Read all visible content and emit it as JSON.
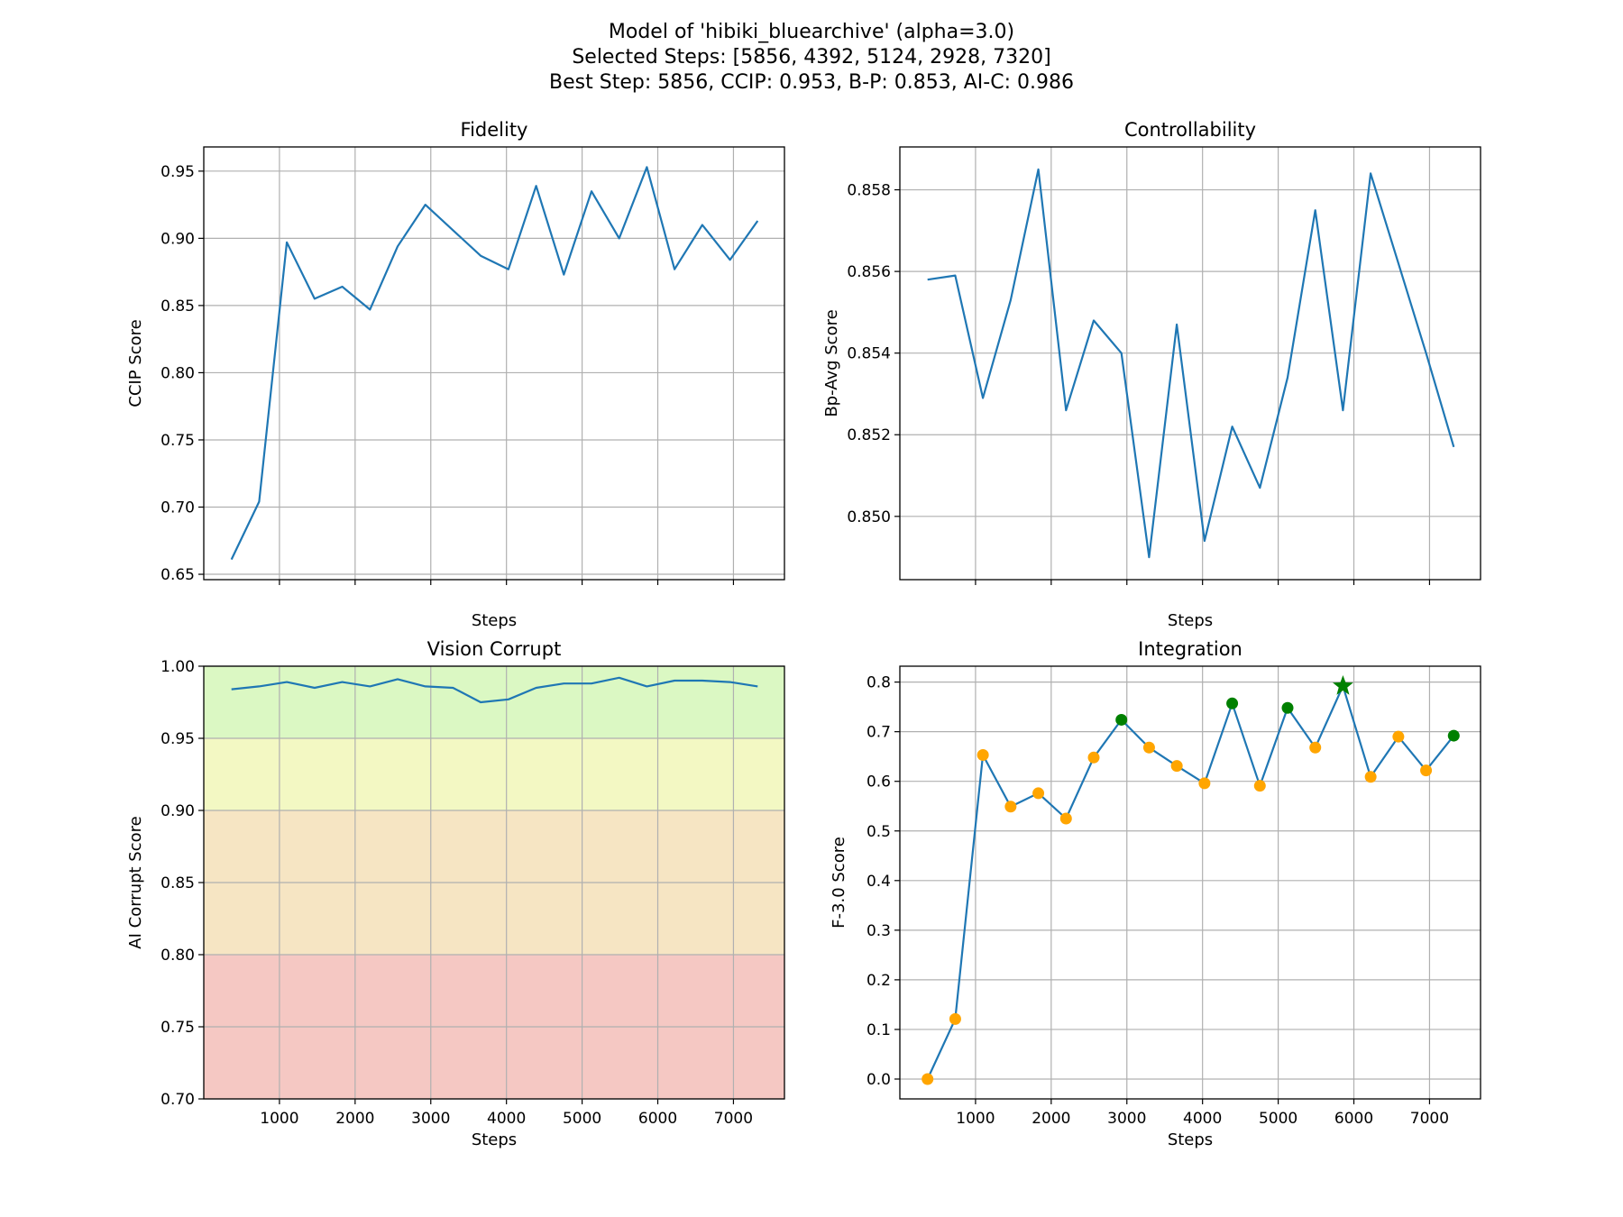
{
  "figure": {
    "title_lines": [
      "Model of 'hibiki_bluearchive' (alpha=3.0)",
      "Selected Steps: [5856, 4392, 5124, 2928, 7320]",
      "Best Step: 5856, CCIP: 0.953, B-P: 0.853, AI-C: 0.986"
    ]
  },
  "colors": {
    "line": "#1f77b4",
    "grid": "#b0b0b0",
    "selected_point": "#008000",
    "other_point": "#ffa500",
    "best_marker": "#008000",
    "band_green": "#dbf8c3",
    "band_yellow": "#f3f8c3",
    "band_orange": "#f6e5c3",
    "band_red": "#f5c8c3"
  },
  "chart_data": [
    {
      "id": "fidelity",
      "type": "line",
      "title": "Fidelity",
      "xlabel": "Steps",
      "ylabel": "CCIP Score",
      "x": [
        366,
        732,
        1098,
        1464,
        1830,
        2196,
        2562,
        2928,
        3294,
        3660,
        4026,
        4392,
        4758,
        5124,
        5490,
        5856,
        6222,
        6588,
        6954,
        7320
      ],
      "values": [
        0.661,
        0.704,
        0.897,
        0.855,
        0.864,
        0.847,
        0.894,
        0.925,
        0.906,
        0.887,
        0.877,
        0.939,
        0.873,
        0.935,
        0.9,
        0.953,
        0.877,
        0.91,
        0.884,
        0.913
      ],
      "xlim": [
        0,
        7674
      ],
      "ylim": [
        0.646,
        0.968
      ],
      "yticks": [
        "0.65",
        "0.70",
        "0.75",
        "0.80",
        "0.85",
        "0.90",
        "0.95"
      ],
      "xticks": [],
      "grid": true
    },
    {
      "id": "controllability",
      "type": "line",
      "title": "Controllability",
      "xlabel": "Steps",
      "ylabel": "Bp-Avg Score",
      "x": [
        366,
        732,
        1098,
        1464,
        1830,
        2196,
        2562,
        2928,
        3294,
        3660,
        4026,
        4392,
        4758,
        5124,
        5490,
        5856,
        6222,
        6588,
        6954,
        7320
      ],
      "values": [
        0.8558,
        0.8559,
        0.8529,
        0.8553,
        0.8585,
        0.8526,
        0.8548,
        0.854,
        0.849,
        0.8547,
        0.8494,
        0.8522,
        0.8507,
        0.8534,
        0.8575,
        0.8526,
        0.8584,
        0.8562,
        0.854,
        0.8517
      ],
      "xlim": [
        0,
        7674
      ],
      "ylim": [
        0.84845,
        0.85905
      ],
      "yticks": [
        "0.850",
        "0.852",
        "0.854",
        "0.856",
        "0.858"
      ],
      "xticks": [],
      "grid": true
    },
    {
      "id": "vision-corrupt",
      "type": "line",
      "title": "Vision Corrupt",
      "xlabel": "Steps",
      "ylabel": "AI Corrupt Score",
      "x": [
        366,
        732,
        1098,
        1464,
        1830,
        2196,
        2562,
        2928,
        3294,
        3660,
        4026,
        4392,
        4758,
        5124,
        5490,
        5856,
        6222,
        6588,
        6954,
        7320
      ],
      "values": [
        0.984,
        0.986,
        0.989,
        0.985,
        0.989,
        0.986,
        0.991,
        0.986,
        0.985,
        0.975,
        0.977,
        0.985,
        0.988,
        0.988,
        0.992,
        0.986,
        0.99,
        0.99,
        0.989,
        0.986
      ],
      "xlim": [
        0,
        7674
      ],
      "ylim": [
        0.7,
        1.0
      ],
      "yticks": [
        "0.70",
        "0.75",
        "0.80",
        "0.85",
        "0.90",
        "0.95",
        "1.00"
      ],
      "xticks": [
        "1000",
        "2000",
        "3000",
        "4000",
        "5000",
        "6000",
        "7000"
      ],
      "bands": [
        {
          "from": 0.95,
          "to": 1.0,
          "color": "band_green"
        },
        {
          "from": 0.9,
          "to": 0.95,
          "color": "band_yellow"
        },
        {
          "from": 0.8,
          "to": 0.9,
          "color": "band_orange"
        },
        {
          "from": 0.7,
          "to": 0.8,
          "color": "band_red"
        }
      ],
      "grid": true
    },
    {
      "id": "integration",
      "type": "line",
      "title": "Integration",
      "xlabel": "Steps",
      "ylabel": "F-3.0 Score",
      "x": [
        366,
        732,
        1098,
        1464,
        1830,
        2196,
        2562,
        2928,
        3294,
        3660,
        4026,
        4392,
        4758,
        5124,
        5490,
        5856,
        6222,
        6588,
        6954,
        7320
      ],
      "values": [
        0.0,
        0.121,
        0.653,
        0.549,
        0.576,
        0.525,
        0.648,
        0.724,
        0.668,
        0.631,
        0.596,
        0.757,
        0.591,
        0.748,
        0.668,
        0.792,
        0.609,
        0.69,
        0.622,
        0.692
      ],
      "selected_steps": [
        5856,
        4392,
        5124,
        2928,
        7320
      ],
      "best_step": 5856,
      "xlim": [
        0,
        7674
      ],
      "ylim": [
        -0.04,
        0.832
      ],
      "yticks": [
        "0.0",
        "0.1",
        "0.2",
        "0.3",
        "0.4",
        "0.5",
        "0.6",
        "0.7",
        "0.8"
      ],
      "xticks": [
        "1000",
        "2000",
        "3000",
        "4000",
        "5000",
        "6000",
        "7000"
      ],
      "grid": true
    }
  ]
}
